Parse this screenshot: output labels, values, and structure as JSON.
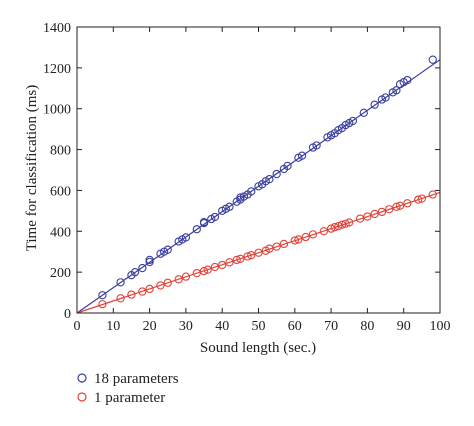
{
  "chart_data": {
    "type": "scatter",
    "xlabel": "Sound length (sec.)",
    "ylabel": "Time for classification (ms)",
    "xlim": [
      0,
      100
    ],
    "ylim": [
      0,
      1400
    ],
    "xticks": [
      0,
      10,
      20,
      30,
      40,
      50,
      60,
      70,
      80,
      90,
      100
    ],
    "yticks": [
      0,
      200,
      400,
      600,
      800,
      1000,
      1200,
      1400
    ],
    "grid": false,
    "legend_position": "bottom-left",
    "series": [
      {
        "name": "18 parameters",
        "color": "#3a3f9e",
        "marker": "circle-open",
        "fit_line": {
          "slope": 12.4,
          "intercept": 0
        },
        "x": [
          7,
          12,
          15,
          16,
          18,
          20,
          20,
          23,
          24,
          25,
          28,
          29,
          30,
          33,
          35,
          35,
          37,
          38,
          40,
          41,
          42,
          44,
          45,
          45,
          46,
          47,
          48,
          50,
          51,
          52,
          53,
          55,
          57,
          58,
          61,
          62,
          65,
          66,
          69,
          70,
          71,
          72,
          73,
          74,
          75,
          76,
          79,
          82,
          84,
          85,
          87,
          88,
          89,
          90,
          91,
          98
        ],
        "y": [
          87,
          150,
          185,
          200,
          220,
          250,
          260,
          290,
          300,
          310,
          350,
          360,
          370,
          410,
          440,
          445,
          460,
          470,
          500,
          510,
          520,
          545,
          555,
          565,
          570,
          580,
          595,
          620,
          630,
          645,
          655,
          680,
          705,
          720,
          760,
          770,
          810,
          820,
          860,
          870,
          880,
          895,
          905,
          920,
          930,
          940,
          980,
          1020,
          1045,
          1055,
          1080,
          1090,
          1120,
          1130,
          1140,
          1240
        ]
      },
      {
        "name": "1 parameter",
        "color": "#e0433a",
        "marker": "circle-open",
        "fit_line": {
          "slope": 5.9,
          "intercept": 0
        },
        "x": [
          7,
          12,
          15,
          18,
          20,
          23,
          25,
          28,
          30,
          33,
          35,
          36,
          38,
          40,
          42,
          44,
          45,
          47,
          48,
          50,
          52,
          53,
          55,
          57,
          60,
          61,
          63,
          65,
          68,
          70,
          71,
          72,
          73,
          74,
          75,
          78,
          80,
          82,
          84,
          86,
          88,
          89,
          91,
          94,
          95,
          98
        ],
        "y": [
          43,
          72,
          90,
          105,
          118,
          135,
          148,
          165,
          178,
          195,
          205,
          212,
          225,
          235,
          248,
          260,
          265,
          277,
          283,
          295,
          305,
          315,
          325,
          338,
          355,
          360,
          372,
          385,
          400,
          413,
          420,
          425,
          432,
          437,
          443,
          462,
          472,
          485,
          495,
          508,
          520,
          525,
          537,
          555,
          560,
          580
        ]
      }
    ]
  }
}
